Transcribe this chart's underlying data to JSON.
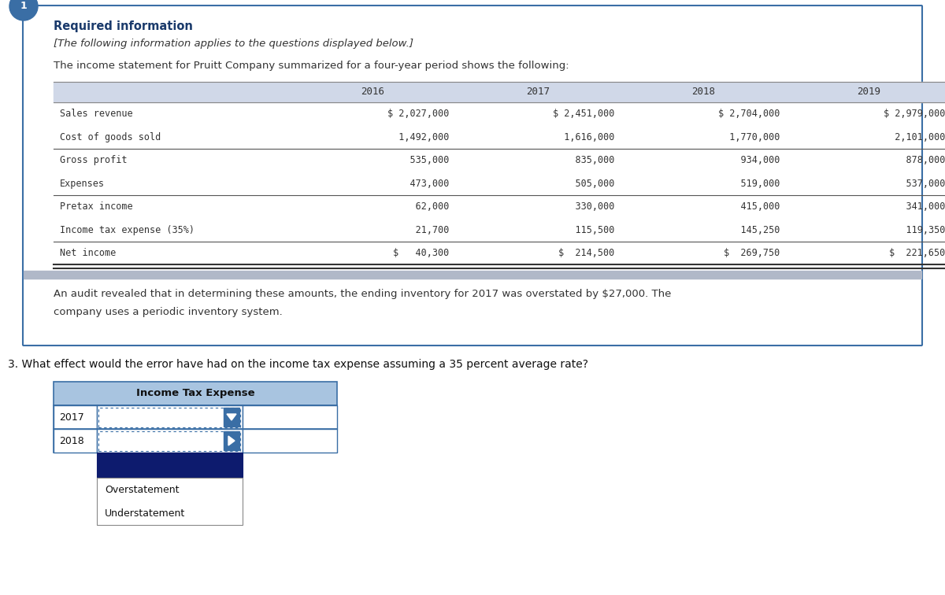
{
  "bg_color": "#ffffff",
  "required_info_text": "Required information",
  "required_info_color": "#1a3a6b",
  "italic_text": "[The following information applies to the questions displayed below.]",
  "intro_text": "The income statement for Pruitt Company summarized for a four-year period shows the following:",
  "table_header_bg": "#d0d8e8",
  "table_years": [
    "2016",
    "2017",
    "2018",
    "2019"
  ],
  "table_rows": [
    [
      "Sales revenue",
      "$ 2,027,000",
      "$ 2,451,000",
      "$ 2,704,000",
      "$ 2,979,000"
    ],
    [
      "Cost of goods sold",
      "  1,492,000",
      "  1,616,000",
      "  1,770,000",
      "  2,101,000"
    ],
    [
      "Gross profit",
      "    535,000",
      "    835,000",
      "    934,000",
      "    878,000"
    ],
    [
      "Expenses",
      "    473,000",
      "    505,000",
      "    519,000",
      "    537,000"
    ],
    [
      "Pretax income",
      "     62,000",
      "    330,000",
      "    415,000",
      "    341,000"
    ],
    [
      "Income tax expense (35%)",
      "     21,700",
      "    115,500",
      "    145,250",
      "    119,350"
    ],
    [
      "Net income",
      "$   40,300",
      "$  214,500",
      "$  269,750",
      "$  221,650"
    ]
  ],
  "audit_text1": "An audit revealed that in determining these amounts, the ending inventory for 2017 was overstated by $27,000. The",
  "audit_text2": "company uses a periodic inventory system.",
  "question_text": "3. What effect would the error have had on the income tax expense assuming a 35 percent average rate?",
  "dropdown_title": "Income Tax Expense",
  "dropdown_title_bg": "#a8c4e0",
  "dropdown_rows": [
    "2017",
    "2018"
  ],
  "dropdown_selected_bg": "#0d1b6e",
  "dropdown_border_color": "#3a6ea5",
  "dropdown_options": [
    "Overstatement",
    "Understatement"
  ],
  "outer_box_color": "#3a6ea5",
  "circle_color": "#3a6ea5",
  "grey_bar_color": "#b0b8c8"
}
